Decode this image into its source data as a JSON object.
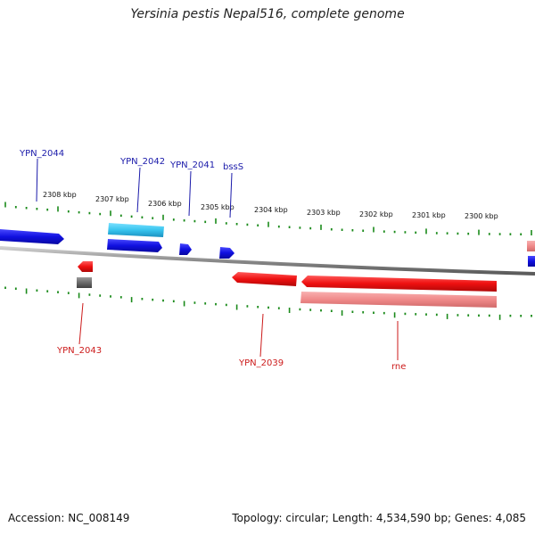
{
  "title": "Yersinia pestis Nepal516, complete genome",
  "footer": {
    "accession": "Accession: NC_008149",
    "summary": "Topology: circular; Length: 4,534,590 bp; Genes: 4,085"
  },
  "colors": {
    "backbone": "#8a8a8a",
    "tick": "#1a8a1a",
    "forward_gene": "#1010e0",
    "forward_cds": "#38c4ee",
    "reverse_gene": "#ee1010",
    "reverse_cds": "#f08a8a",
    "other_feature": "#6a6a6a",
    "forward_label": "#1a1aaa",
    "reverse_label": "#cc1a1a"
  },
  "scale": {
    "unit": "kbp",
    "ticks": [
      {
        "label": "2308 kbp"
      },
      {
        "label": "2307 kbp"
      },
      {
        "label": "2306 kbp"
      },
      {
        "label": "2305 kbp"
      },
      {
        "label": "2304 kbp"
      },
      {
        "label": "2303 kbp"
      },
      {
        "label": "2302 kbp"
      },
      {
        "label": "2301 kbp"
      },
      {
        "label": "2300 kbp"
      }
    ]
  },
  "genes": [
    {
      "name": "YPN_2044",
      "strand": "+"
    },
    {
      "name": "YPN_2042",
      "strand": "+"
    },
    {
      "name": "YPN_2041",
      "strand": "+"
    },
    {
      "name": "bssS",
      "strand": "+"
    },
    {
      "name": "YPN_2043",
      "strand": "-"
    },
    {
      "name": "YPN_2039",
      "strand": "-"
    },
    {
      "name": "rne",
      "strand": "-"
    }
  ]
}
